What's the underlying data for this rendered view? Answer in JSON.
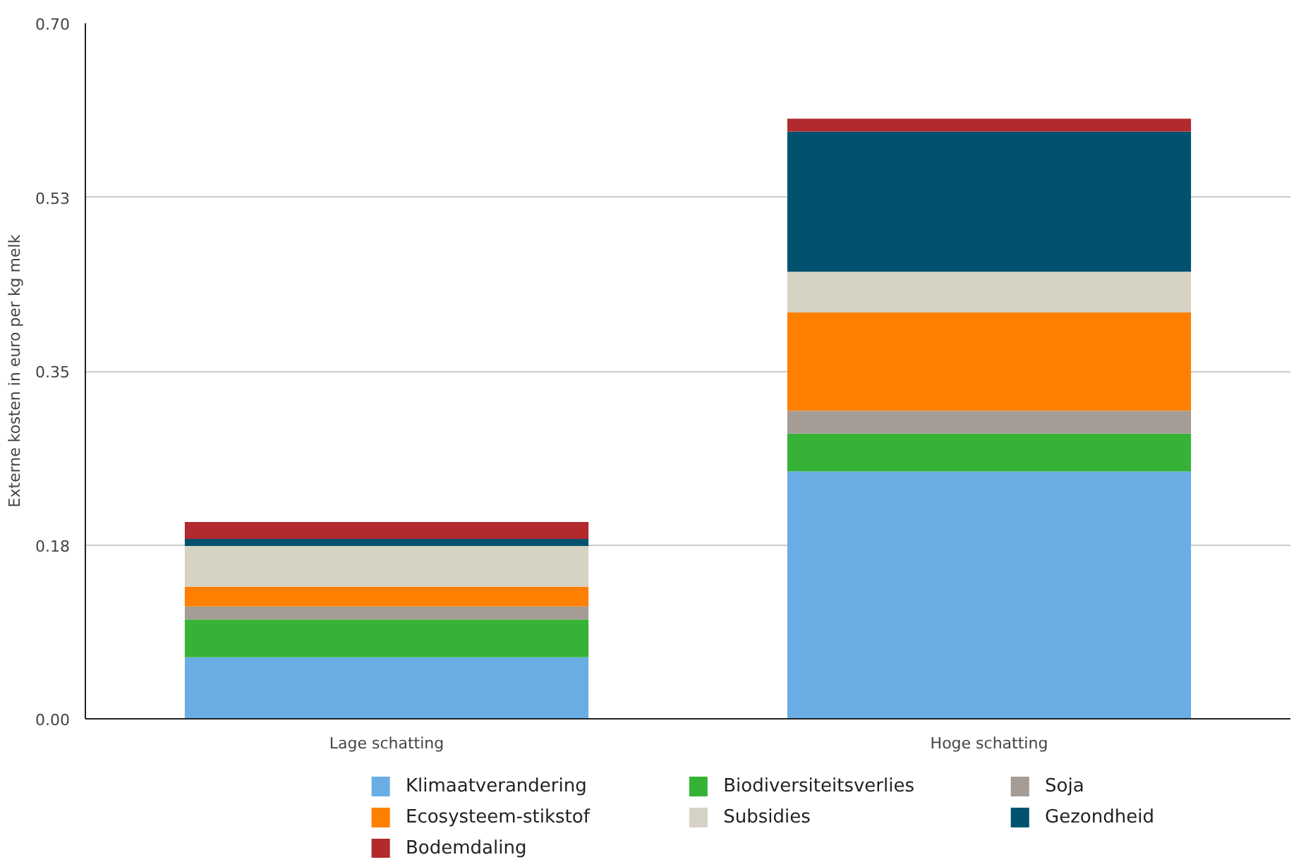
{
  "chart_data": {
    "type": "bar",
    "stacked": true,
    "ylabel": "Externe kosten in euro per kg melk",
    "categories": [
      "Lage schatting",
      "Hoge schatting"
    ],
    "series": [
      {
        "name": "Klimaatverandering",
        "color": "#6aade4",
        "values": [
          0.062,
          0.249
        ]
      },
      {
        "name": "Biodiversiteitsverlies",
        "color": "#36b336",
        "values": [
          0.038,
          0.038
        ]
      },
      {
        "name": "Soja",
        "color": "#a59d95",
        "values": [
          0.013,
          0.023
        ]
      },
      {
        "name": "Ecosysteem-stikstof",
        "color": "#ff7f00",
        "values": [
          0.02,
          0.099
        ]
      },
      {
        "name": "Subsidies",
        "color": "#d6d2c4",
        "values": [
          0.041,
          0.041
        ]
      },
      {
        "name": "Gezondheid",
        "color": "#00526f",
        "values": [
          0.007,
          0.141
        ]
      },
      {
        "name": "Bodemdaling",
        "color": "#b2292e",
        "values": [
          0.017,
          0.013
        ]
      }
    ],
    "ylim": [
      0,
      0.7
    ],
    "yticks": [
      {
        "value": 0,
        "label": "0.00"
      },
      {
        "value": 0.175,
        "label": "0.18"
      },
      {
        "value": 0.35,
        "label": "0.35"
      },
      {
        "value": 0.525,
        "label": "0.53"
      },
      {
        "value": 0.7,
        "label": "0.70"
      }
    ],
    "grid": "y",
    "legend": "bottom"
  }
}
